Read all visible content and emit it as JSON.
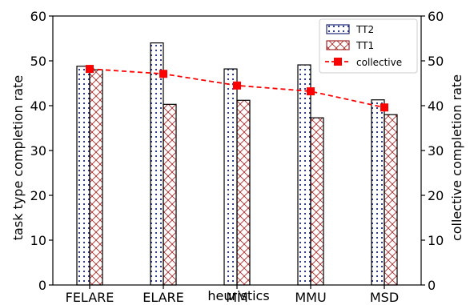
{
  "chart_data": {
    "type": "bar",
    "categories": [
      "FELARE",
      "ELARE",
      "MM",
      "MMU",
      "MSD"
    ],
    "series": [
      {
        "name": "TT2",
        "kind": "bar",
        "pattern": "dots",
        "color": "#1f2a7a",
        "values": [
          48.8,
          54.0,
          48.2,
          49.1,
          41.3
        ]
      },
      {
        "name": "TT1",
        "kind": "bar",
        "pattern": "crosshatch",
        "color": "#a52a2a",
        "values": [
          48.0,
          40.3,
          41.2,
          37.3,
          38.0
        ]
      },
      {
        "name": "collective",
        "kind": "line",
        "axis": "right",
        "style": "dashed",
        "marker": "square",
        "color": "#ff0000",
        "values": [
          48.2,
          47.1,
          44.5,
          43.2,
          39.6
        ]
      }
    ],
    "xlabel": "heuristics",
    "ylabel": "task type completion rate",
    "ylabel_right": "collective completion rate",
    "ylim": [
      0,
      60
    ],
    "ylim_right": [
      0,
      60
    ],
    "yticks": [
      0,
      10,
      20,
      30,
      40,
      50,
      60
    ],
    "legend": {
      "placement": "top-right",
      "entries": [
        "TT2",
        "TT1",
        "collective"
      ]
    },
    "grid": false
  }
}
